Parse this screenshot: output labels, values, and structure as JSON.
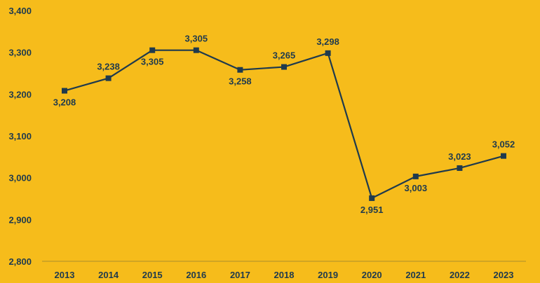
{
  "chart_data": {
    "type": "line",
    "title": "",
    "xlabel": "",
    "ylabel": "",
    "categories": [
      "2013",
      "2014",
      "2015",
      "2016",
      "2017",
      "2018",
      "2019",
      "2020",
      "2021",
      "2022",
      "2023"
    ],
    "values": [
      3208,
      3238,
      3305,
      3305,
      3258,
      3265,
      3298,
      2951,
      3003,
      3023,
      3052
    ],
    "value_labels": [
      "3,208",
      "3,238",
      "3,305",
      "3,305",
      "3,258",
      "3,265",
      "3,298",
      "2,951",
      "3,003",
      "3,023",
      "3,052"
    ],
    "label_positions": [
      "below",
      "above",
      "below",
      "above",
      "below",
      "above",
      "above",
      "below",
      "below",
      "above",
      "above"
    ],
    "ylim": [
      2800,
      3400
    ],
    "yticks": [
      2800,
      2900,
      3000,
      3100,
      3200,
      3300,
      3400
    ],
    "ytick_labels": [
      "2,800",
      "2,900",
      "3,000",
      "3,100",
      "3,200",
      "3,300",
      "3,400"
    ],
    "grid": false,
    "legend": "none",
    "colors": {
      "background": "#F6BC1B",
      "line": "#1F3A4D",
      "marker": "#1F3A4D",
      "text": "#1F3A4D"
    }
  }
}
